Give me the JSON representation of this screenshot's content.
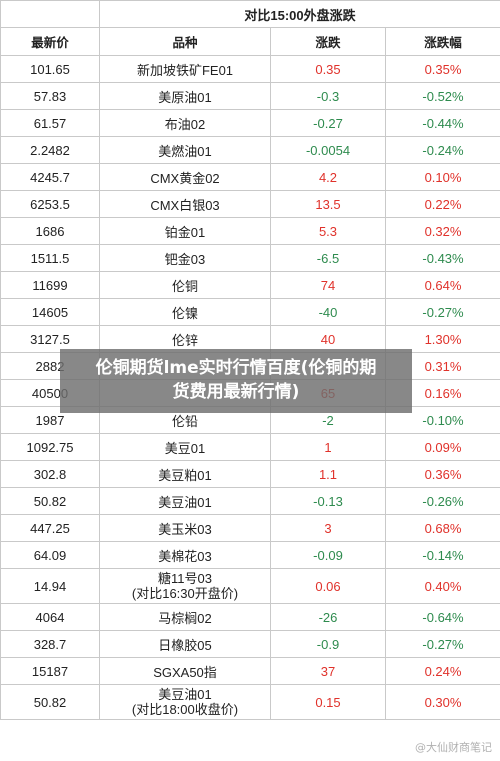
{
  "table": {
    "group_header": "对比15:00外盘涨跌",
    "headers": {
      "price": "最新价",
      "name": "品种",
      "change": "涨跌",
      "change_pct": "涨跌幅"
    },
    "rows": [
      {
        "price": "101.65",
        "name": "新加坡铁矿FE01",
        "change": "0.35",
        "change_pct": "0.35%",
        "dir": "up"
      },
      {
        "price": "57.83",
        "name": "美原油01",
        "change": "-0.3",
        "change_pct": "-0.52%",
        "dir": "down"
      },
      {
        "price": "61.57",
        "name": "布油02",
        "change": "-0.27",
        "change_pct": "-0.44%",
        "dir": "down"
      },
      {
        "price": "2.2482",
        "name": "美燃油01",
        "change": "-0.0054",
        "change_pct": "-0.24%",
        "dir": "down"
      },
      {
        "price": "4245.7",
        "name": "CMX黄金02",
        "change": "4.2",
        "change_pct": "0.10%",
        "dir": "up"
      },
      {
        "price": "6253.5",
        "name": "CMX白银03",
        "change": "13.5",
        "change_pct": "0.22%",
        "dir": "up"
      },
      {
        "price": "1686",
        "name": "铂金01",
        "change": "5.3",
        "change_pct": "0.32%",
        "dir": "up"
      },
      {
        "price": "1511.5",
        "name": "钯金03",
        "change": "-6.5",
        "change_pct": "-0.43%",
        "dir": "down"
      },
      {
        "price": "11699",
        "name": "伦铜",
        "change": "74",
        "change_pct": "0.64%",
        "dir": "up"
      },
      {
        "price": "14605",
        "name": "伦镍",
        "change": "-40",
        "change_pct": "-0.27%",
        "dir": "down"
      },
      {
        "price": "3127.5",
        "name": "伦锌",
        "change": "40",
        "change_pct": "1.30%",
        "dir": "up"
      },
      {
        "price": "2882",
        "name": "",
        "change": "",
        "change_pct": "0.31%",
        "dir": "up"
      },
      {
        "price": "40500",
        "name": "",
        "change": "65",
        "change_pct": "0.16%",
        "dir": "up"
      },
      {
        "price": "1987",
        "name": "伦铅",
        "change": "-2",
        "change_pct": "-0.10%",
        "dir": "down"
      },
      {
        "price": "1092.75",
        "name": "美豆01",
        "change": "1",
        "change_pct": "0.09%",
        "dir": "up"
      },
      {
        "price": "302.8",
        "name": "美豆粕01",
        "change": "1.1",
        "change_pct": "0.36%",
        "dir": "up"
      },
      {
        "price": "50.82",
        "name": "美豆油01",
        "change": "-0.13",
        "change_pct": "-0.26%",
        "dir": "down"
      },
      {
        "price": "447.25",
        "name": "美玉米03",
        "change": "3",
        "change_pct": "0.68%",
        "dir": "up"
      },
      {
        "price": "64.09",
        "name": "美棉花03",
        "change": "-0.09",
        "change_pct": "-0.14%",
        "dir": "down"
      },
      {
        "price": "14.94",
        "name": "糖11号03",
        "sub": "(对比16:30开盘价)",
        "change": "0.06",
        "change_pct": "0.40%",
        "dir": "up"
      },
      {
        "price": "4064",
        "name": "马棕榈02",
        "change": "-26",
        "change_pct": "-0.64%",
        "dir": "down"
      },
      {
        "price": "328.7",
        "name": "日橡胶05",
        "change": "-0.9",
        "change_pct": "-0.27%",
        "dir": "down"
      },
      {
        "price": "15187",
        "name": "SGXA50指",
        "change": "37",
        "change_pct": "0.24%",
        "dir": "up"
      },
      {
        "price": "50.82",
        "name": "美豆油01",
        "sub": "(对比18:00收盘价)",
        "change": "0.15",
        "change_pct": "0.30%",
        "dir": "up"
      }
    ]
  },
  "overlay": {
    "line1": "伦铜期货lme实时行情百度(伦铜的期",
    "line2": "货费用最新行情)"
  },
  "watermark": "@大仙财商笔记"
}
